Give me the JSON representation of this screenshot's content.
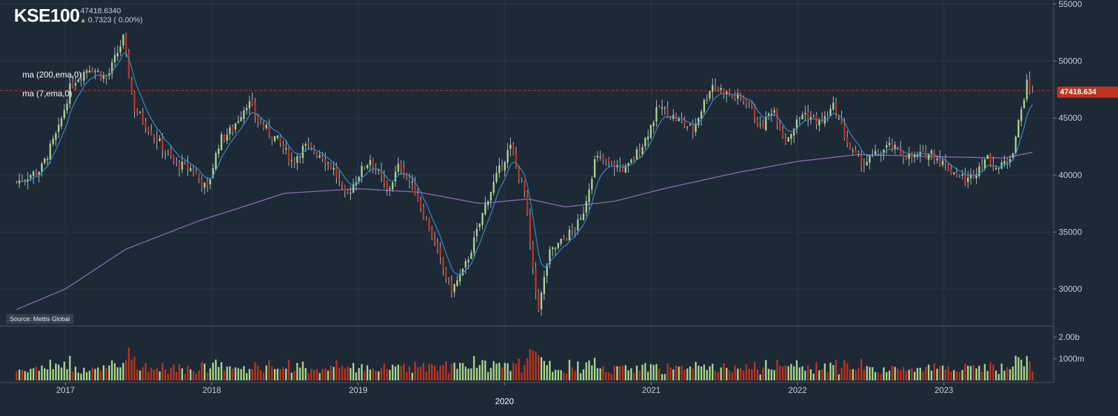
{
  "header": {
    "ticker": "KSE100",
    "last_price": "47418.6340",
    "change_icon": "up-arrow-icon",
    "change": "0.7323 ( 0.00%)"
  },
  "indicators": [
    {
      "label": "ma (200,ema,0)",
      "color": "#9b6fc4"
    },
    {
      "label": "ma (7,ema,0)",
      "color": "#2f8fd0"
    }
  ],
  "source_label": "Source: Mettis Global",
  "last_price_tag": "47418.634",
  "colors": {
    "up": "#a8d88a",
    "down": "#c0331c",
    "background": "#1e2936",
    "grid": "#2b3744"
  },
  "chart_data": {
    "type": "candlestick",
    "title": "KSE100",
    "y_axis": {
      "ticks": [
        30000,
        35000,
        40000,
        45000,
        50000,
        55000
      ],
      "ylim": [
        26000,
        55000
      ]
    },
    "volume_axis": {
      "ticks": [
        "1000m",
        "2.00b"
      ]
    },
    "x_axis": {
      "ticks": [
        "2017",
        "2018",
        "2019",
        "2020",
        "2021",
        "2022",
        "2023"
      ],
      "highlight": "2020"
    },
    "anchors": [
      [
        "2016-09-01",
        39400
      ],
      [
        "2016-11-01",
        40500
      ],
      [
        "2016-12-15",
        44000
      ],
      [
        "2017-01-15",
        48000
      ],
      [
        "2017-03-01",
        49500
      ],
      [
        "2017-04-15",
        48500
      ],
      [
        "2017-05-25",
        52000
      ],
      [
        "2017-06-20",
        46000
      ],
      [
        "2017-07-20",
        44500
      ],
      [
        "2017-08-20",
        43000
      ],
      [
        "2017-10-01",
        41000
      ],
      [
        "2017-11-15",
        40500
      ],
      [
        "2017-12-20",
        38700
      ],
      [
        "2018-01-20",
        43000
      ],
      [
        "2018-02-20",
        44000
      ],
      [
        "2018-04-01",
        46500
      ],
      [
        "2018-05-01",
        44500
      ],
      [
        "2018-06-15",
        43000
      ],
      [
        "2018-07-20",
        41200
      ],
      [
        "2018-08-20",
        42500
      ],
      [
        "2018-10-01",
        41800
      ],
      [
        "2018-11-01",
        40500
      ],
      [
        "2018-12-01",
        38000
      ],
      [
        "2019-01-01",
        40000
      ],
      [
        "2019-02-01",
        41500
      ],
      [
        "2019-03-15",
        38500
      ],
      [
        "2019-04-15",
        41000
      ],
      [
        "2019-05-20",
        38800
      ],
      [
        "2019-06-20",
        36000
      ],
      [
        "2019-07-20",
        33000
      ],
      [
        "2019-08-20",
        29800
      ],
      [
        "2019-09-20",
        31500
      ],
      [
        "2019-10-20",
        34500
      ],
      [
        "2019-11-20",
        38000
      ],
      [
        "2019-12-20",
        40500
      ],
      [
        "2020-01-15",
        42500
      ],
      [
        "2020-02-20",
        38500
      ],
      [
        "2020-03-15",
        30500
      ],
      [
        "2020-03-27",
        28300
      ],
      [
        "2020-04-20",
        33000
      ],
      [
        "2020-06-01",
        34500
      ],
      [
        "2020-07-10",
        36000
      ],
      [
        "2020-08-15",
        41500
      ],
      [
        "2020-09-20",
        41000
      ],
      [
        "2020-11-01",
        40500
      ],
      [
        "2020-12-15",
        43000
      ],
      [
        "2021-01-20",
        46000
      ],
      [
        "2021-03-01",
        45000
      ],
      [
        "2021-04-15",
        44000
      ],
      [
        "2021-06-01",
        48000
      ],
      [
        "2021-07-15",
        47000
      ],
      [
        "2021-09-01",
        46500
      ],
      [
        "2021-10-01",
        44000
      ],
      [
        "2021-11-01",
        46000
      ],
      [
        "2021-12-01",
        43000
      ],
      [
        "2022-01-15",
        45500
      ],
      [
        "2022-03-01",
        44500
      ],
      [
        "2022-04-01",
        46000
      ],
      [
        "2022-05-15",
        42000
      ],
      [
        "2022-06-15",
        41000
      ],
      [
        "2022-08-15",
        42500
      ],
      [
        "2022-10-15",
        41500
      ],
      [
        "2022-12-01",
        42000
      ],
      [
        "2023-01-15",
        40500
      ],
      [
        "2023-03-01",
        39500
      ],
      [
        "2023-04-15",
        41500
      ],
      [
        "2023-05-20",
        40500
      ],
      [
        "2023-06-20",
        42000
      ],
      [
        "2023-07-15",
        46000
      ],
      [
        "2023-07-25",
        48000
      ],
      [
        "2023-08-10",
        47418
      ]
    ],
    "ma200_anchors": [
      [
        "2016-09-01",
        28200
      ],
      [
        "2017-01-01",
        30000
      ],
      [
        "2017-06-01",
        33500
      ],
      [
        "2017-12-01",
        36000
      ],
      [
        "2018-03-01",
        37000
      ],
      [
        "2018-07-01",
        38400
      ],
      [
        "2019-01-01",
        38800
      ],
      [
        "2019-06-01",
        38500
      ],
      [
        "2019-11-01",
        37500
      ],
      [
        "2020-03-01",
        37900
      ],
      [
        "2020-06-01",
        37200
      ],
      [
        "2020-10-01",
        37700
      ],
      [
        "2021-02-01",
        38800
      ],
      [
        "2021-08-01",
        40200
      ],
      [
        "2022-01-01",
        41200
      ],
      [
        "2022-06-01",
        41800
      ],
      [
        "2023-01-01",
        41600
      ],
      [
        "2023-06-01",
        41500
      ],
      [
        "2023-08-10",
        42000
      ]
    ]
  }
}
